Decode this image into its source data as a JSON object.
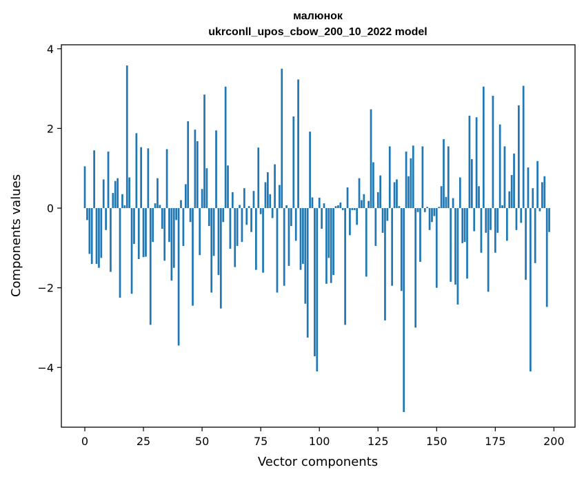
{
  "colors": {
    "bar": "#1f77b4",
    "axis": "#000000",
    "background": "#ffffff"
  },
  "chart_data": {
    "type": "bar",
    "title_line1": "малюнок",
    "title_line2": "ukrconll_upos_cbow_200_10_2022 model",
    "xlabel": "Vector components",
    "ylabel": "Components values",
    "xlim": [
      -10,
      209
    ],
    "ylim": [
      -5.5,
      4.1
    ],
    "xticks": [
      0,
      25,
      50,
      75,
      100,
      125,
      150,
      175,
      200
    ],
    "xtick_labels": [
      "0",
      "25",
      "50",
      "75",
      "100",
      "125",
      "150",
      "175",
      "200"
    ],
    "yticks": [
      4,
      2,
      0,
      -2,
      -4
    ],
    "ytick_labels": [
      "4",
      "2",
      "0",
      "−2",
      "−4"
    ],
    "grid": false,
    "values": [
      1.05,
      -0.3,
      -1.15,
      -1.4,
      1.45,
      -1.4,
      -1.5,
      -1.25,
      0.72,
      -0.55,
      1.42,
      -1.6,
      0.38,
      0.68,
      0.75,
      -2.25,
      0.35,
      0.07,
      3.58,
      0.77,
      -2.15,
      -0.9,
      1.88,
      -1.28,
      1.53,
      -1.23,
      -1.22,
      1.5,
      -2.93,
      -0.85,
      0.12,
      0.75,
      0.08,
      -0.52,
      -1.32,
      1.48,
      -0.85,
      -1.82,
      -1.5,
      -0.3,
      -3.45,
      0.2,
      -0.95,
      0.6,
      2.18,
      -0.35,
      -2.45,
      1.97,
      1.68,
      -1.18,
      0.48,
      2.85,
      1.0,
      -0.45,
      -2.12,
      -1.2,
      1.95,
      -1.68,
      -2.52,
      -0.35,
      3.05,
      1.07,
      -1.02,
      0.4,
      -1.48,
      -0.95,
      0.08,
      -0.85,
      0.5,
      -0.42,
      0.05,
      -0.6,
      0.43,
      -1.55,
      1.52,
      -0.15,
      -1.62,
      0.65,
      0.9,
      0.35,
      -0.25,
      1.1,
      -2.12,
      0.58,
      3.5,
      -1.95,
      0.07,
      -1.45,
      -0.45,
      2.3,
      -0.82,
      3.23,
      -1.55,
      -1.4,
      -2.4,
      -3.25,
      1.92,
      0.27,
      -3.72,
      -4.1,
      0.26,
      -0.52,
      0.12,
      -1.9,
      -1.25,
      -1.88,
      -1.68,
      0.05,
      0.07,
      0.14,
      -0.05,
      -2.93,
      0.52,
      -0.68,
      -0.05,
      -0.05,
      -0.42,
      0.75,
      0.2,
      0.35,
      -1.72,
      0.18,
      2.48,
      1.15,
      -0.95,
      0.4,
      0.82,
      -0.62,
      -2.82,
      -0.32,
      1.55,
      -1.95,
      0.65,
      0.72,
      0.05,
      -2.08,
      -5.12,
      1.42,
      0.8,
      1.25,
      1.57,
      -3.0,
      -0.1,
      -1.35,
      1.55,
      -0.1,
      0.03,
      -0.55,
      -0.35,
      -0.2,
      -2.0,
      0.03,
      0.55,
      1.73,
      0.28,
      1.55,
      -1.85,
      0.25,
      -1.92,
      -2.42,
      0.77,
      -0.88,
      -0.85,
      -1.77,
      2.32,
      1.23,
      -0.58,
      2.28,
      0.55,
      -1.12,
      3.05,
      -0.62,
      -2.1,
      -0.55,
      2.82,
      -1.12,
      -0.62,
      2.1,
      0.07,
      1.55,
      -0.82,
      0.42,
      0.83,
      1.37,
      -0.55,
      2.58,
      -0.37,
      3.07,
      -1.8,
      1.02,
      -4.1,
      0.5,
      -1.38,
      1.18,
      -0.08,
      0.65,
      0.8,
      -2.48,
      -0.6
    ]
  }
}
